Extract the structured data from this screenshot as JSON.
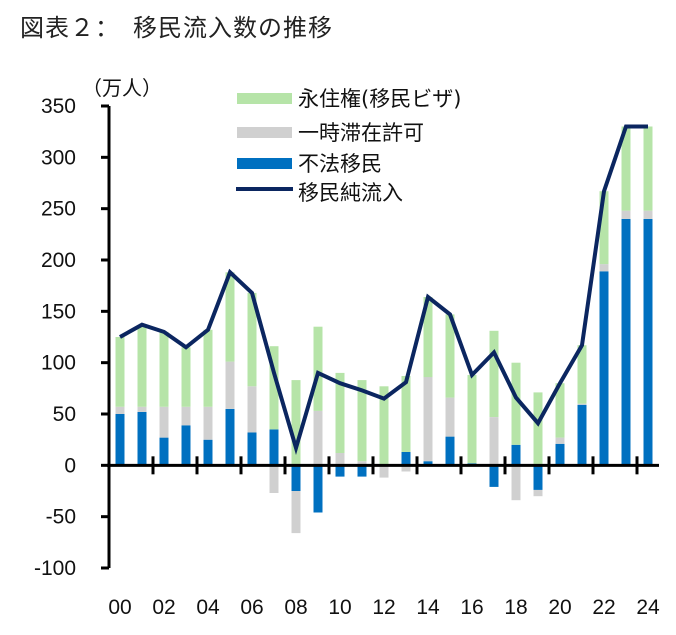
{
  "title": "図表２：　移民流入数の推移",
  "colors": {
    "permanent": "#B6E4A8",
    "temporary": "#D0D0D0",
    "illegal": "#0070C0",
    "net": "#0B2660",
    "axis": "#000000"
  },
  "chart_data": {
    "type": "bar",
    "stacked": true,
    "title": "図表２：　移民流入数の推移",
    "unit_label": "（万人）",
    "xlabel": "",
    "ylabel": "（万人）",
    "ylim": [
      -100,
      350
    ],
    "yticks": [
      350,
      300,
      250,
      200,
      150,
      100,
      50,
      0,
      -50,
      -100
    ],
    "ytick_labels": [
      "350",
      "300",
      "250",
      "200",
      "150",
      "100",
      "50",
      "0",
      "-50",
      "-100"
    ],
    "categories": [
      "00",
      "01",
      "02",
      "03",
      "04",
      "05",
      "06",
      "07",
      "08",
      "09",
      "10",
      "11",
      "12",
      "13",
      "14",
      "15",
      "16",
      "17",
      "18",
      "19",
      "20",
      "21",
      "22",
      "23",
      "24"
    ],
    "xtick_labels": [
      "00",
      "02",
      "04",
      "06",
      "08",
      "10",
      "12",
      "14",
      "16",
      "18",
      "20",
      "22",
      "24"
    ],
    "legend_position": "top-center",
    "grid": false,
    "series": [
      {
        "name": "永住権(移民ビザ)",
        "type": "bar",
        "color_key": "permanent",
        "values": [
          68,
          78,
          73,
          58,
          75,
          87,
          91,
          81,
          83,
          82,
          78,
          79,
          77,
          74,
          78,
          81,
          86,
          84,
          80,
          71,
          53,
          57,
          71,
          82,
          82
        ]
      },
      {
        "name": "一時滞在許可",
        "type": "bar",
        "color_key": "temporary",
        "values": [
          7,
          5,
          30,
          18,
          32,
          46,
          45,
          -27,
          -41,
          53,
          12,
          4,
          -12,
          -6,
          82,
          38,
          0,
          47,
          -34,
          -6,
          6,
          1,
          7,
          8,
          8
        ]
      },
      {
        "name": "不法移民",
        "type": "bar",
        "color_key": "illegal",
        "values": [
          50,
          52,
          27,
          39,
          25,
          55,
          32,
          35,
          -25,
          -46,
          -11,
          -11,
          0,
          13,
          4,
          28,
          2,
          -21,
          20,
          -24,
          21,
          59,
          189,
          240,
          240
        ]
      },
      {
        "name": "移民純流入",
        "type": "line",
        "color_key": "net",
        "values": [
          125,
          137,
          130,
          115,
          132,
          188,
          168,
          90,
          17,
          90,
          80,
          73,
          65,
          81,
          164,
          147,
          88,
          110,
          66,
          41,
          80,
          117,
          267,
          330,
          330
        ]
      }
    ]
  }
}
